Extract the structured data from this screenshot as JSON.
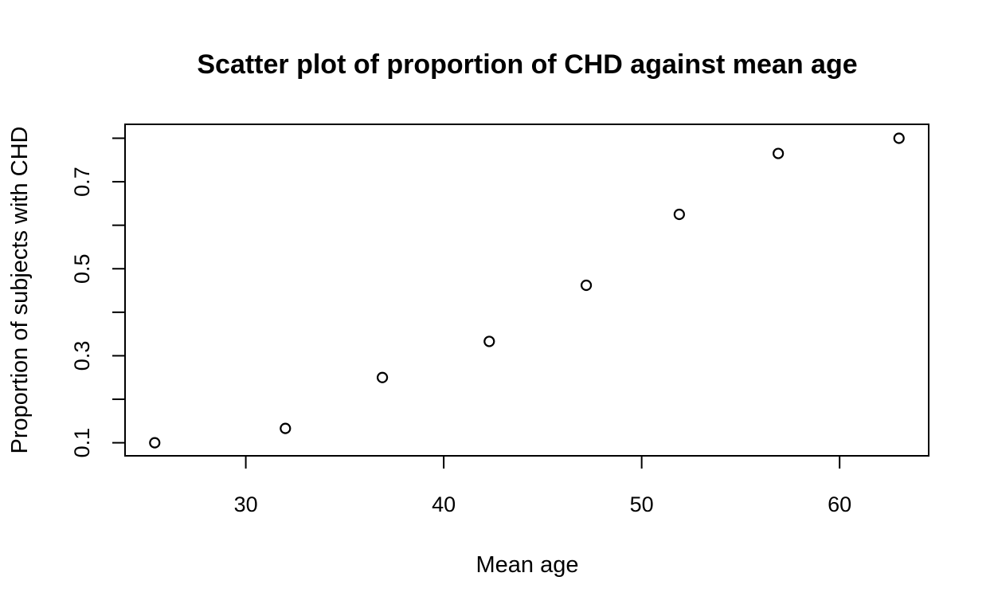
{
  "chart_data": {
    "type": "scatter",
    "title": "Scatter plot of proportion of CHD against mean age",
    "xlabel": "Mean age",
    "ylabel": "Proportion of subjects with CHD",
    "xlim": [
      23.9,
      64.5
    ],
    "ylim": [
      0.07,
      0.832
    ],
    "x_ticks": [
      30,
      40,
      50,
      60
    ],
    "x_tick_labels": [
      "30",
      "40",
      "50",
      "60"
    ],
    "y_ticks": [
      0.1,
      0.2,
      0.3,
      0.4,
      0.5,
      0.6,
      0.7,
      0.8
    ],
    "y_tick_labels": [
      "0.1",
      "",
      "0.3",
      "",
      "0.5",
      "",
      "0.7",
      ""
    ],
    "grid": false,
    "legend": "none",
    "marker": "open-circle",
    "points": [
      {
        "x": 25.4,
        "y": 0.1
      },
      {
        "x": 32.0,
        "y": 0.133
      },
      {
        "x": 36.9,
        "y": 0.25
      },
      {
        "x": 42.3,
        "y": 0.333
      },
      {
        "x": 47.2,
        "y": 0.462
      },
      {
        "x": 51.9,
        "y": 0.625
      },
      {
        "x": 56.9,
        "y": 0.765
      },
      {
        "x": 63.0,
        "y": 0.8
      }
    ]
  }
}
